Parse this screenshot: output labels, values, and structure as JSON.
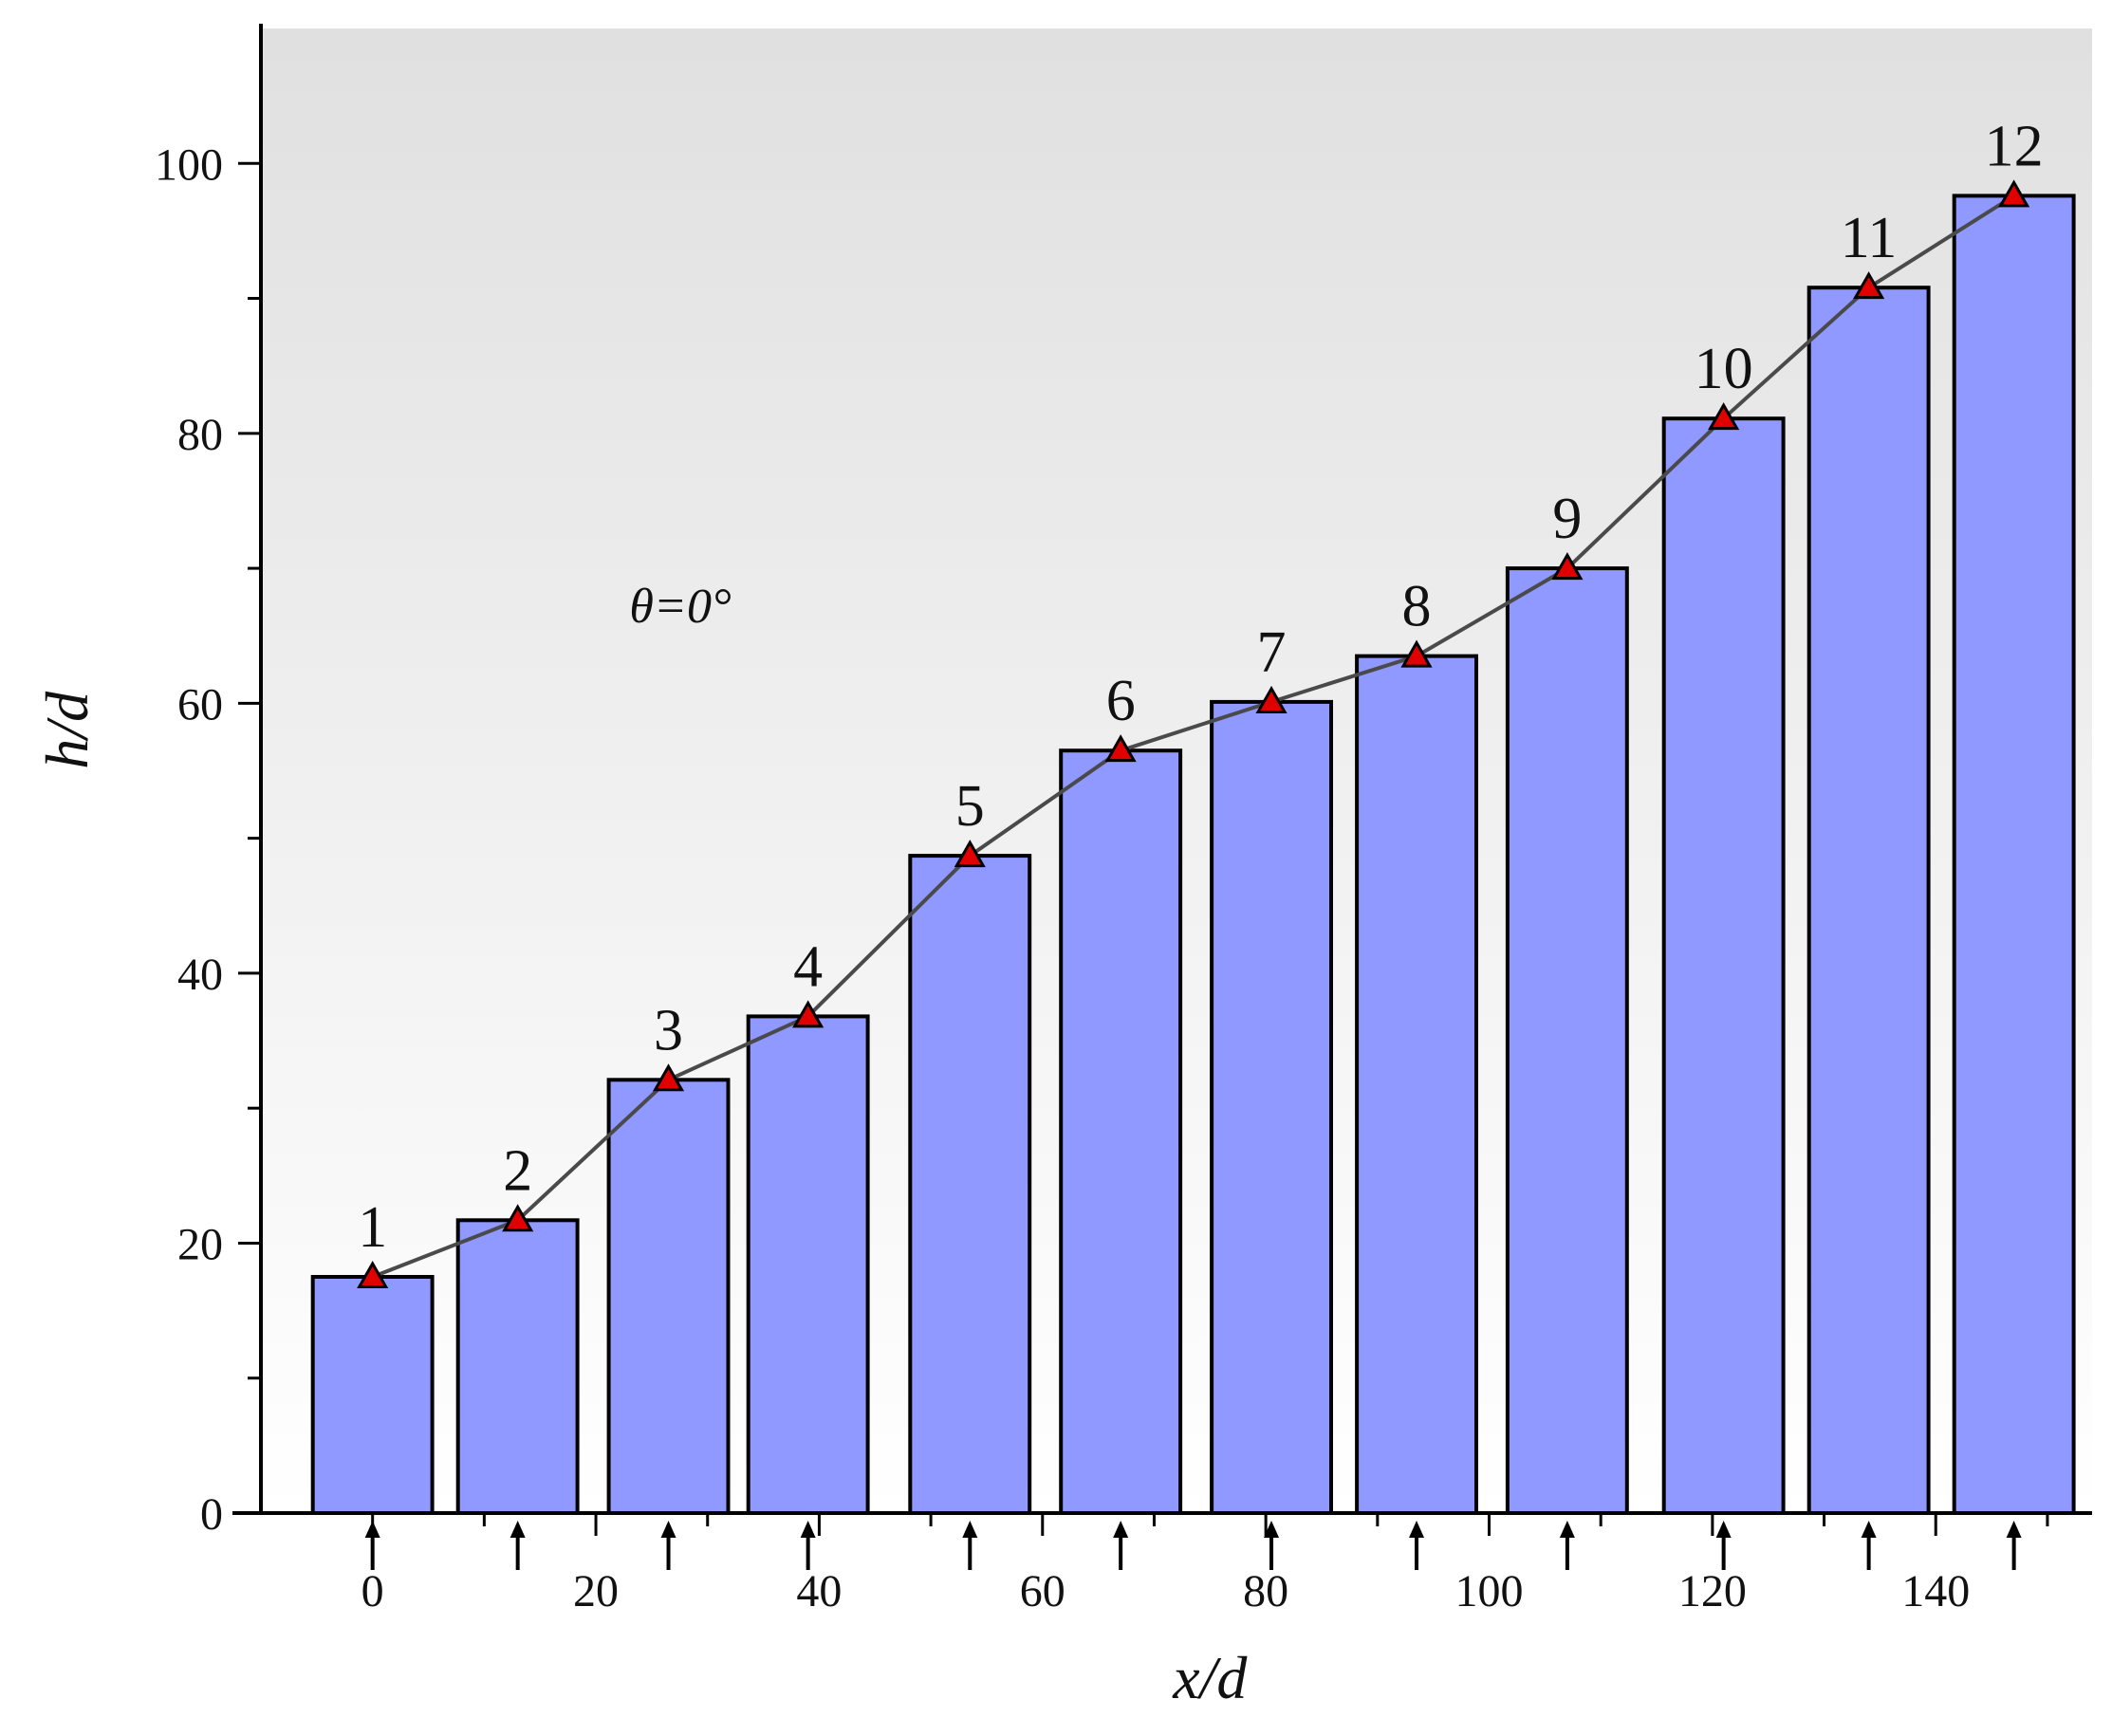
{
  "chart_data": {
    "type": "bar",
    "xlabel": "x/d",
    "ylabel": "h/d",
    "annotation": "θ=0°",
    "xlim": [
      -10,
      154
    ],
    "ylim": [
      0,
      110
    ],
    "xticks": [
      0,
      20,
      40,
      60,
      80,
      100,
      120,
      140
    ],
    "yticks": [
      0,
      20,
      40,
      60,
      80,
      100
    ],
    "bar_width": 10.7,
    "bars": [
      {
        "label": "1",
        "x": 0,
        "value": 17.5
      },
      {
        "label": "2",
        "x": 13,
        "value": 21.7
      },
      {
        "label": "3",
        "x": 26.5,
        "value": 32.1
      },
      {
        "label": "4",
        "x": 39,
        "value": 36.8
      },
      {
        "label": "5",
        "x": 53.5,
        "value": 48.7
      },
      {
        "label": "6",
        "x": 67,
        "value": 56.5
      },
      {
        "label": "7",
        "x": 80.5,
        "value": 60.1
      },
      {
        "label": "8",
        "x": 93.5,
        "value": 63.5
      },
      {
        "label": "9",
        "x": 107,
        "value": 70.0
      },
      {
        "label": "10",
        "x": 121,
        "value": 81.1
      },
      {
        "label": "11",
        "x": 134,
        "value": 90.8
      },
      {
        "label": "12",
        "x": 147,
        "value": 97.6
      }
    ],
    "colors": {
      "bar_fill": "#8f99ff",
      "bar_stroke": "#000000",
      "marker_fill": "#e00000",
      "line": "#4a4a4a",
      "bg_top": "#e0e0e0",
      "bg_bottom": "#ffffff"
    },
    "markers": "triangle",
    "arrows_below_axis": true,
    "grid": false
  }
}
